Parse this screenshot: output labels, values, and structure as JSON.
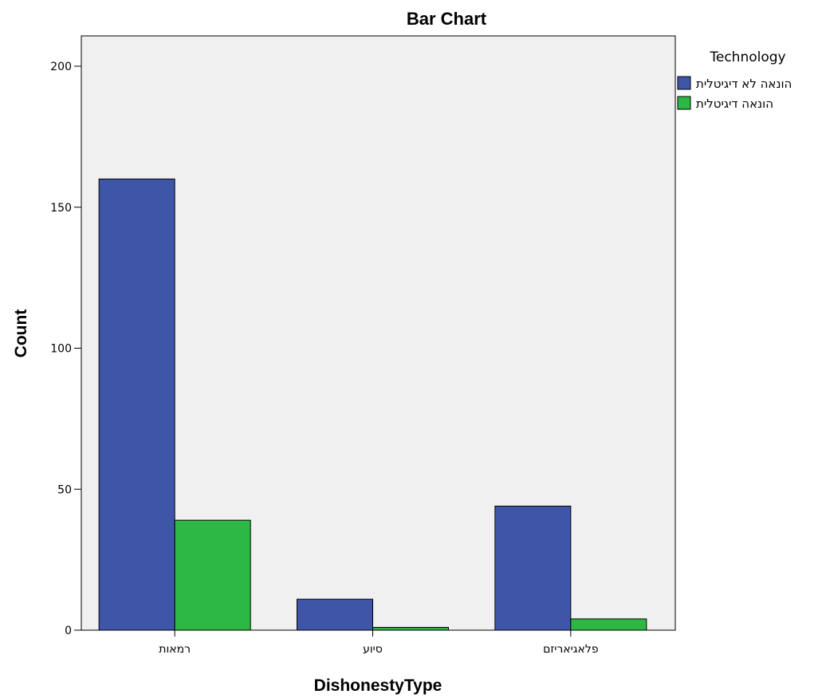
{
  "chart_data": {
    "type": "bar",
    "title": "Bar Chart",
    "xlabel": "DishonestyType",
    "ylabel": "Count",
    "categories": [
      "רמאות",
      "סיוע",
      "פלאגיאריזם"
    ],
    "series": [
      {
        "name": "הונאה לא דיגיטלית",
        "values": [
          160,
          11,
          44
        ],
        "color": "#3f56a8"
      },
      {
        "name": "הונאה דיגיטלית",
        "values": [
          39,
          1,
          4
        ],
        "color": "#2db846"
      }
    ],
    "ylim": [
      0,
      210
    ],
    "yticks": [
      0,
      50,
      100,
      150,
      200
    ],
    "grid": false,
    "legend": {
      "title": "Technology",
      "placement": "right"
    },
    "plot_background": "#f0f0f0"
  }
}
